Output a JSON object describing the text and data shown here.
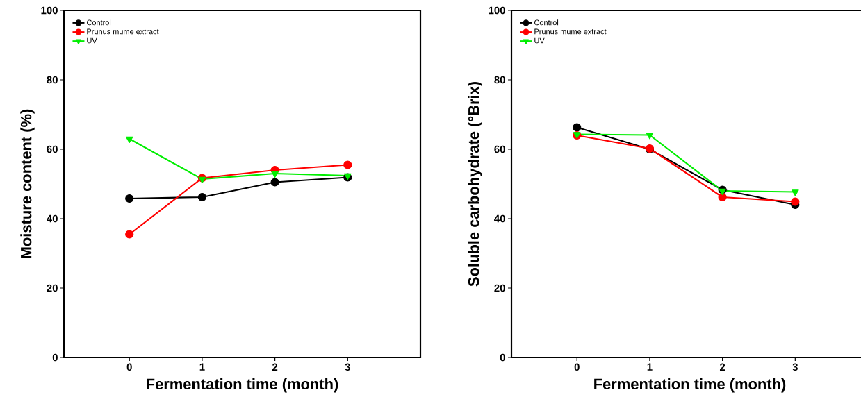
{
  "chart_data": [
    {
      "type": "line",
      "xlabel": "Fermentation time (month)",
      "ylabel": "Moisture content (%)",
      "x": [
        0,
        1,
        2,
        3
      ],
      "xlim": [
        -0.9,
        4
      ],
      "xticks": [
        0,
        1,
        2,
        3
      ],
      "ylim": [
        0,
        100
      ],
      "yticks": [
        0,
        20,
        40,
        60,
        80,
        100
      ],
      "legend": "top left",
      "grid": false,
      "series": [
        {
          "name": "Control",
          "color": "#000000",
          "marker": "circle",
          "values": [
            45.8,
            46.2,
            50.5,
            51.9
          ]
        },
        {
          "name": "Prunus mume extract",
          "color": "#ff0000",
          "marker": "circle",
          "values": [
            35.5,
            51.7,
            54,
            55.5
          ]
        },
        {
          "name": "UV",
          "color": "#00ee00",
          "marker": "triangle",
          "values": [
            63,
            51.4,
            53,
            52.4
          ]
        }
      ]
    },
    {
      "type": "line",
      "xlabel": "Fermentation time (month)",
      "ylabel": "Soluble carbohydrate (°Brix)",
      "x": [
        0,
        1,
        2,
        3
      ],
      "xlim": [
        -0.9,
        4
      ],
      "xticks": [
        0,
        1,
        2,
        3
      ],
      "ylim": [
        0,
        100
      ],
      "yticks": [
        0,
        20,
        40,
        60,
        80,
        100
      ],
      "legend": "top left",
      "grid": false,
      "series": [
        {
          "name": "Control",
          "color": "#000000",
          "marker": "circle",
          "values": [
            66.3,
            60,
            48.3,
            44
          ]
        },
        {
          "name": "Prunus mume extract",
          "color": "#ff0000",
          "marker": "circle",
          "values": [
            64,
            60.2,
            46.2,
            44.9
          ]
        },
        {
          "name": "UV",
          "color": "#00ee00",
          "marker": "triangle",
          "values": [
            64.3,
            64.1,
            48,
            47.7
          ]
        }
      ]
    }
  ]
}
